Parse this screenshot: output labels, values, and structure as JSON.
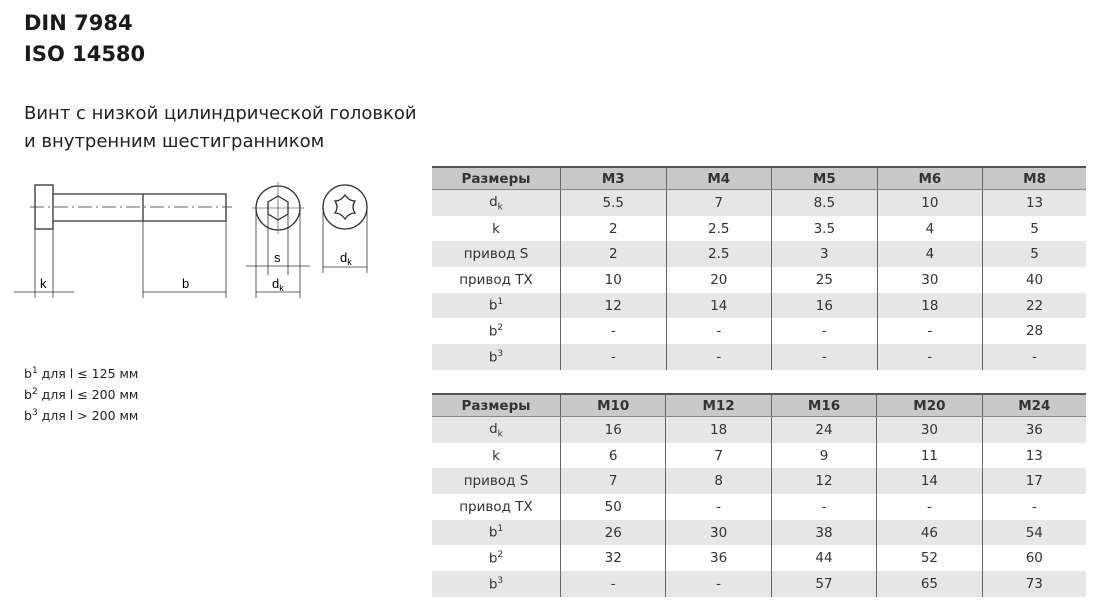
{
  "header": {
    "line1": "DIN 7984",
    "line2": "ISO 14580"
  },
  "description": {
    "line1": "Винт с низкой цилиндрической головкой",
    "line2": "и внутренним шестигранником"
  },
  "drawing": {
    "k": "k",
    "b": "b",
    "s": "s",
    "d": "d",
    "dk_sub": "k"
  },
  "notes": [
    {
      "b": "b",
      "sup": "1",
      "text": " для l ≤ 125 мм"
    },
    {
      "b": "b",
      "sup": "2",
      "text": " для l ≤ 200 мм"
    },
    {
      "b": "b",
      "sup": "3",
      "text": " для l > 200 мм"
    }
  ],
  "tables": [
    {
      "header": [
        "Размеры",
        "M3",
        "M4",
        "M5",
        "M6",
        "M8"
      ],
      "rows": [
        {
          "label": "d",
          "sub": "k",
          "values": [
            "5.5",
            "7",
            "8.5",
            "10",
            "13"
          ]
        },
        {
          "label": "k",
          "values": [
            "2",
            "2.5",
            "3.5",
            "4",
            "5"
          ]
        },
        {
          "label": "привод S",
          "values": [
            "2",
            "2.5",
            "3",
            "4",
            "5"
          ]
        },
        {
          "label": "привод TX",
          "values": [
            "10",
            "20",
            "25",
            "30",
            "40"
          ]
        },
        {
          "label": "b",
          "sup": "1",
          "values": [
            "12",
            "14",
            "16",
            "18",
            "22"
          ]
        },
        {
          "label": "b",
          "sup": "2",
          "values": [
            "-",
            "-",
            "-",
            "-",
            "28"
          ]
        },
        {
          "label": "b",
          "sup": "3",
          "values": [
            "-",
            "-",
            "-",
            "-",
            "-"
          ]
        }
      ]
    },
    {
      "header": [
        "Размеры",
        "M10",
        "M12",
        "M16",
        "M20",
        "M24"
      ],
      "rows": [
        {
          "label": "d",
          "sub": "k",
          "values": [
            "16",
            "18",
            "24",
            "30",
            "36"
          ]
        },
        {
          "label": "k",
          "values": [
            "6",
            "7",
            "9",
            "11",
            "13"
          ]
        },
        {
          "label": "привод S",
          "values": [
            "7",
            "8",
            "12",
            "14",
            "17"
          ]
        },
        {
          "label": "привод TX",
          "values": [
            "50",
            "-",
            "-",
            "-",
            "-"
          ]
        },
        {
          "label": "b",
          "sup": "1",
          "values": [
            "26",
            "30",
            "38",
            "46",
            "54"
          ]
        },
        {
          "label": "b",
          "sup": "2",
          "values": [
            "32",
            "36",
            "44",
            "52",
            "60"
          ]
        },
        {
          "label": "b",
          "sup": "3",
          "values": [
            "-",
            "-",
            "57",
            "65",
            "73"
          ]
        }
      ]
    }
  ]
}
